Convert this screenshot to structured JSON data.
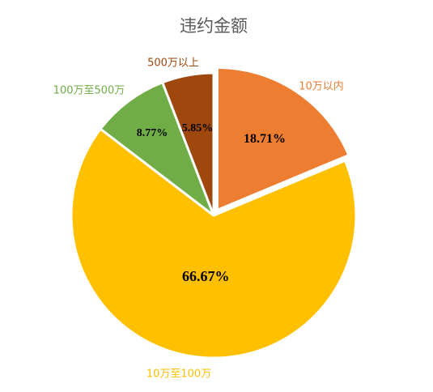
{
  "chart_data": {
    "type": "pie",
    "title": "违约金额",
    "slices": [
      {
        "label": "10万以内",
        "value": 18.71,
        "value_label": "18.71%",
        "color": "#ED7D31",
        "label_color": "#ED7D31"
      },
      {
        "label": "10万至100万",
        "value": 66.67,
        "value_label": "66.67%",
        "color": "#FFC000",
        "label_color": "#FFC000"
      },
      {
        "label": "100万至500万",
        "value": 8.77,
        "value_label": "8.77%",
        "color": "#70AD47",
        "label_color": "#70AD47"
      },
      {
        "label": "500万以上",
        "value": 5.85,
        "value_label": "5.85%",
        "color": "#9E480E",
        "label_color": "#9E480E"
      }
    ],
    "start_angle": "12 o'clock",
    "direction": "clockwise",
    "exploded_slice": "10万以内",
    "legend": "none"
  }
}
